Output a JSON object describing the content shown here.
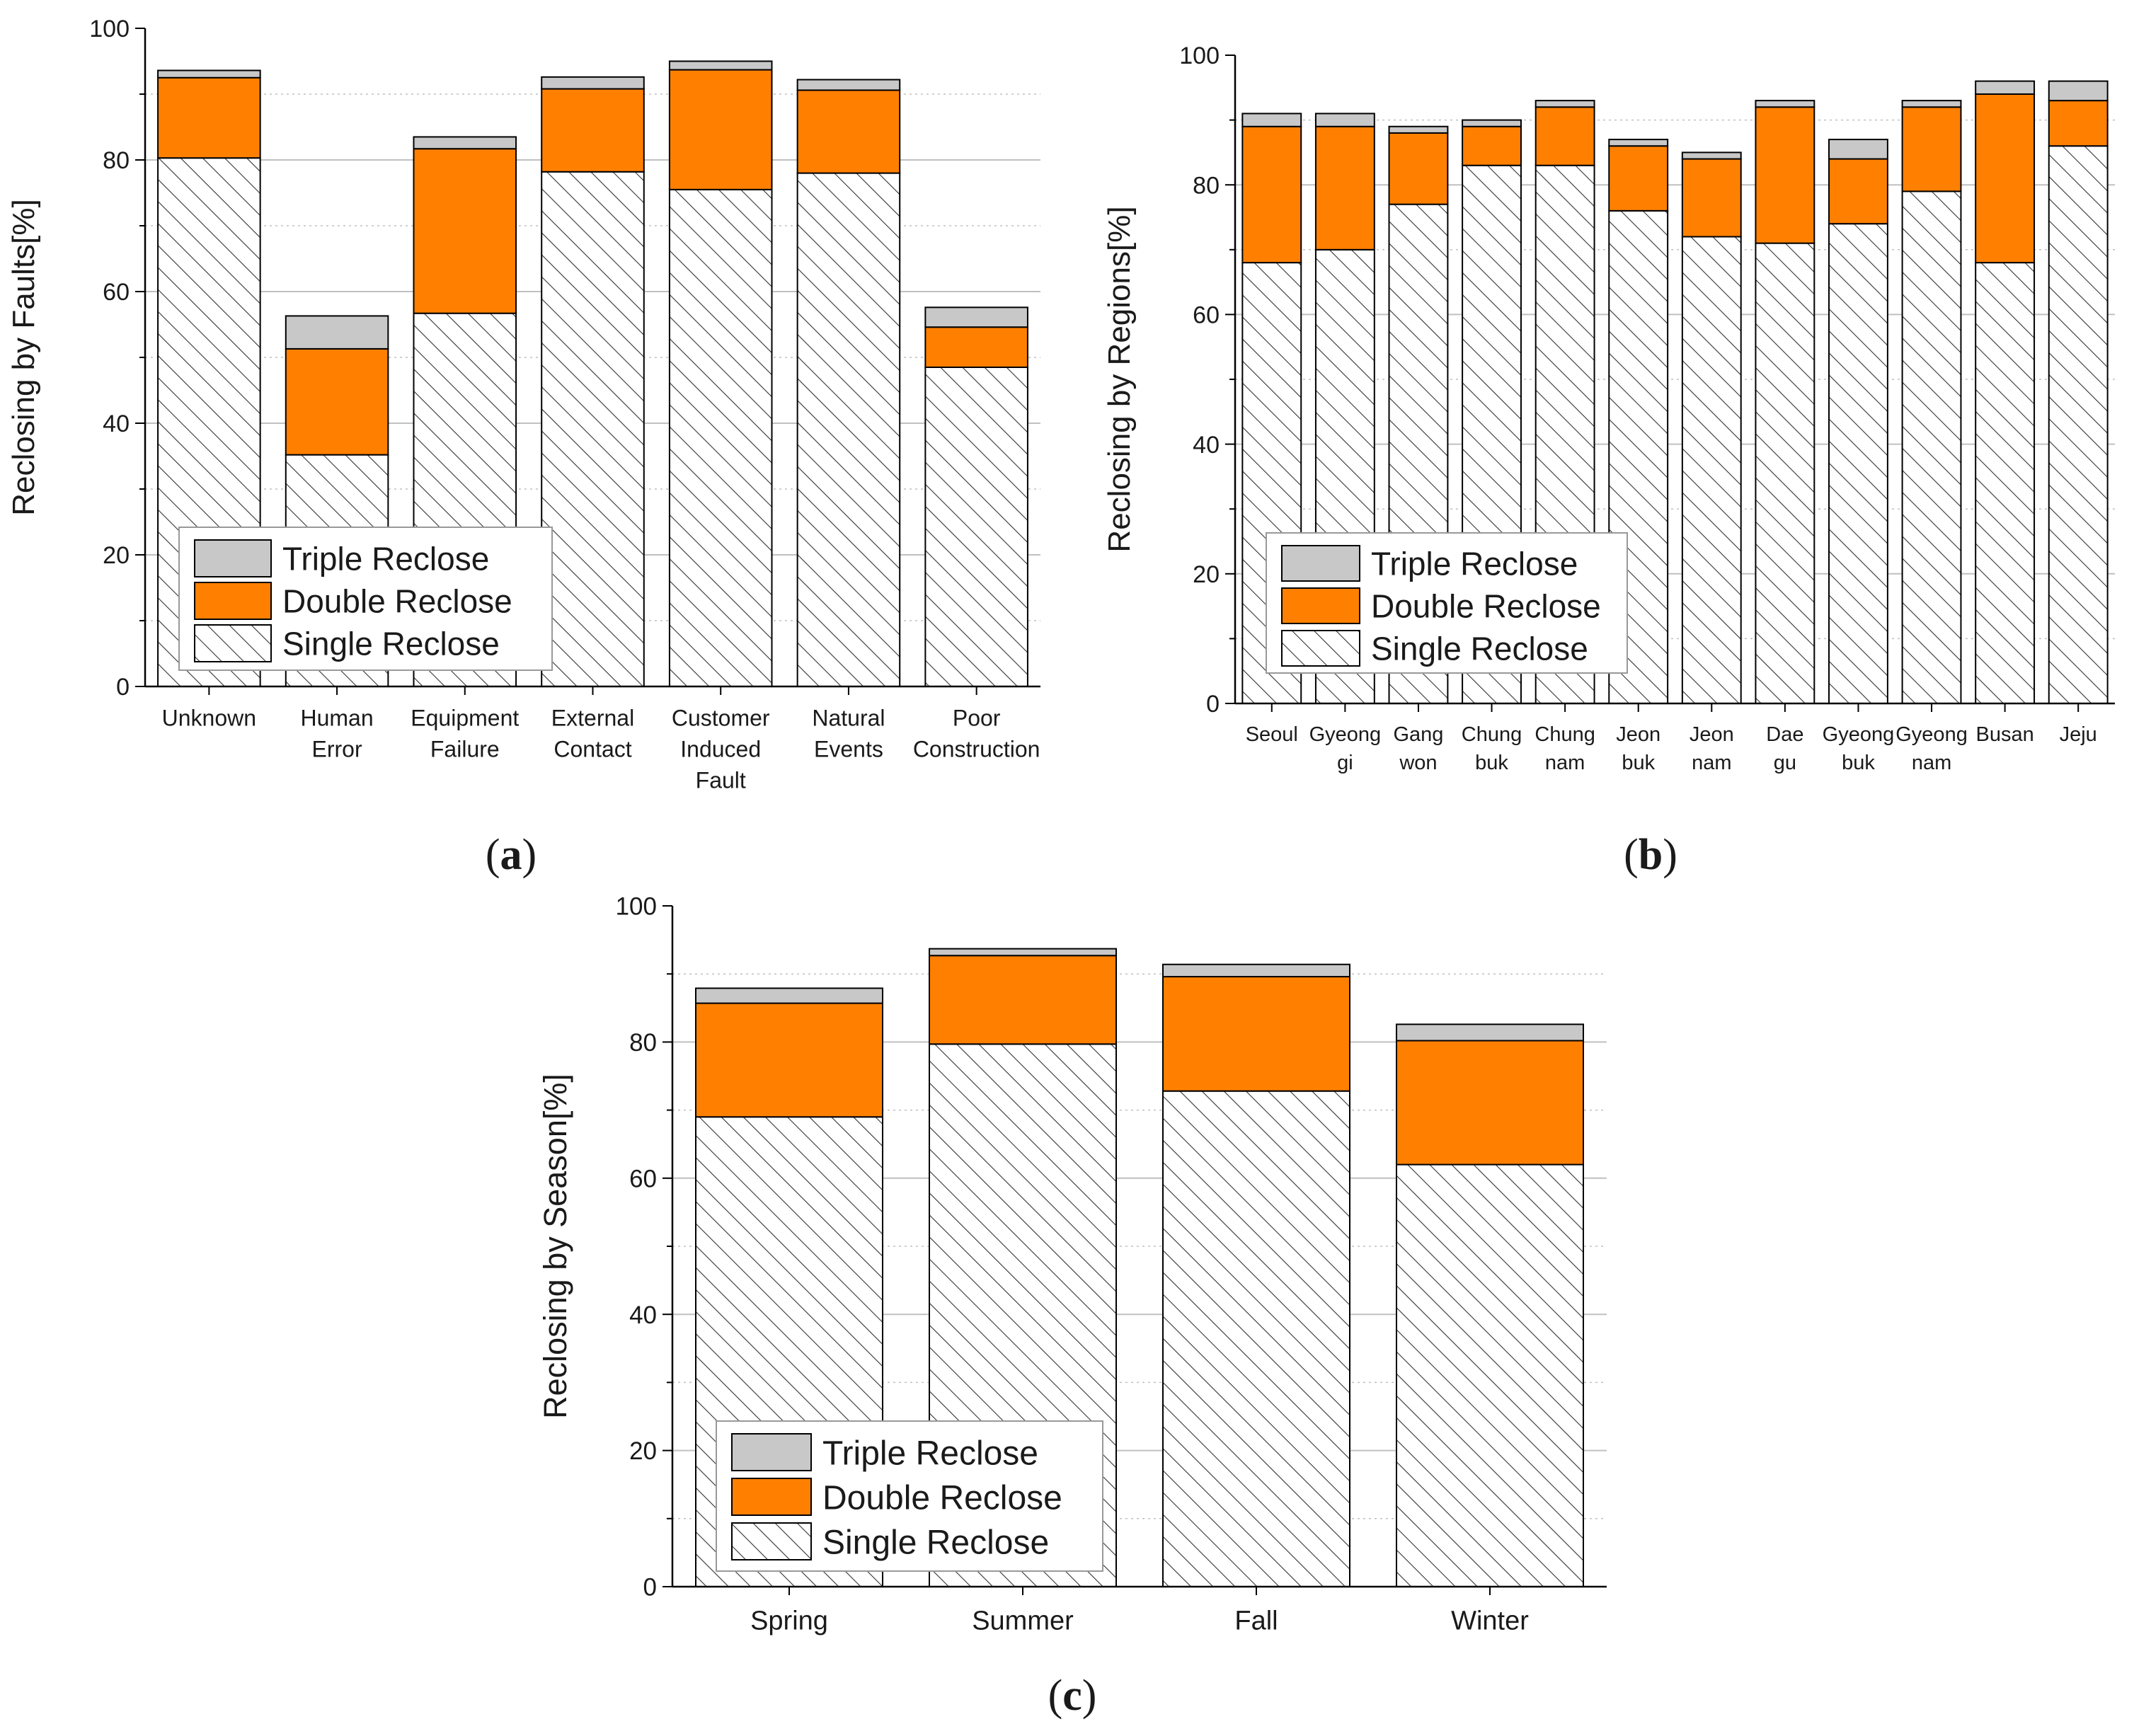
{
  "colors": {
    "single": "#ffffff",
    "double": "#ff8000",
    "triple": "#c8c8c8",
    "hatch": "#333333",
    "grid": "#c0c0c0",
    "axis": "#000000",
    "bar_edge": "#000000"
  },
  "chart_data": [
    {
      "type": "bar",
      "stacked": true,
      "panel_label": "a",
      "title": "",
      "xlabel": "",
      "ylabel": "Reclosing by Faults[%]",
      "ylim": [
        0,
        100
      ],
      "yticks": [
        "0",
        "20",
        "40",
        "60",
        "80",
        "100"
      ],
      "grid": true,
      "categories": [
        "Unknown",
        "Human Error",
        "Equipment Failure",
        "External Contact",
        "Customer Induced Fault",
        "Natural Events",
        "Poor Construction"
      ],
      "category_lines": [
        [
          "Unknown"
        ],
        [
          "Human",
          "Error"
        ],
        [
          "Equipment",
          "Failure"
        ],
        [
          "External",
          "Contact"
        ],
        [
          "Customer",
          "Induced",
          "Fault"
        ],
        [
          "Natural",
          "Events"
        ],
        [
          "Poor",
          "Construction"
        ]
      ],
      "series": [
        {
          "name": "Single Reclose",
          "values": [
            80.3,
            35.2,
            56.7,
            78.2,
            75.5,
            78.0,
            48.5
          ]
        },
        {
          "name": "Double Reclose",
          "values": [
            12.2,
            16.1,
            25.0,
            12.6,
            18.2,
            12.6,
            6.1
          ]
        },
        {
          "name": "Triple Reclose",
          "values": [
            1.1,
            5.0,
            1.8,
            1.8,
            1.3,
            1.6,
            3.0
          ]
        }
      ],
      "legend": {
        "position": "bottom-left",
        "entries": [
          "Triple Reclose",
          "Double Reclose",
          "Single Reclose"
        ]
      }
    },
    {
      "type": "bar",
      "stacked": true,
      "panel_label": "b",
      "title": "",
      "xlabel": "",
      "ylabel": "Reclosing by Regions[%]",
      "ylim": [
        0,
        100
      ],
      "yticks": [
        "0",
        "20",
        "40",
        "60",
        "80",
        "100"
      ],
      "grid": true,
      "categories": [
        "Seoul",
        "Gyeong gi",
        "Gang won",
        "Chung buk",
        "Chung nam",
        "Jeon buk",
        "Jeon nam",
        "Dae gu",
        "Gyeong buk",
        "Gyeong nam",
        "Busan",
        "Jeju"
      ],
      "category_lines": [
        [
          "Seoul"
        ],
        [
          "Gyeong",
          "gi"
        ],
        [
          "Gang",
          "won"
        ],
        [
          "Chung",
          "buk"
        ],
        [
          "Chung",
          "nam"
        ],
        [
          "Jeon",
          "buk"
        ],
        [
          "Jeon",
          "nam"
        ],
        [
          "Dae",
          "gu"
        ],
        [
          "Gyeong",
          "buk"
        ],
        [
          "Gyeong",
          "nam"
        ],
        [
          "Busan"
        ],
        [
          "Jeju"
        ]
      ],
      "series": [
        {
          "name": "Single Reclose",
          "values": [
            68,
            70,
            77,
            83,
            83,
            76,
            72,
            71,
            74,
            79,
            68,
            86
          ]
        },
        {
          "name": "Double Reclose",
          "values": [
            21,
            19,
            11,
            6,
            9,
            10,
            12,
            21,
            10,
            13,
            26,
            7
          ]
        },
        {
          "name": "Triple Reclose",
          "values": [
            2,
            2,
            1,
            1,
            1,
            1,
            1,
            1,
            3,
            1,
            2,
            3
          ]
        }
      ],
      "legend": {
        "position": "bottom-left",
        "entries": [
          "Triple Reclose",
          "Double Reclose",
          "Single Reclose"
        ]
      }
    },
    {
      "type": "bar",
      "stacked": true,
      "panel_label": "c",
      "title": "",
      "xlabel": "",
      "ylabel": "Reclosing by Season[%]",
      "ylim": [
        0,
        100
      ],
      "yticks": [
        "0",
        "20",
        "40",
        "60",
        "80",
        "100"
      ],
      "grid": true,
      "categories": [
        "Spring",
        "Summer",
        "Fall",
        "Winter"
      ],
      "category_lines": [
        [
          "Spring"
        ],
        [
          "Summer"
        ],
        [
          "Fall"
        ],
        [
          "Winter"
        ]
      ],
      "series": [
        {
          "name": "Single Reclose",
          "values": [
            69.0,
            79.7,
            72.8,
            62.0
          ]
        },
        {
          "name": "Double Reclose",
          "values": [
            16.7,
            13.0,
            16.8,
            18.2
          ]
        },
        {
          "name": "Triple Reclose",
          "values": [
            2.2,
            1.0,
            1.8,
            2.4
          ]
        }
      ],
      "legend": {
        "position": "bottom-left",
        "entries": [
          "Triple Reclose",
          "Double Reclose",
          "Single Reclose"
        ]
      }
    }
  ]
}
